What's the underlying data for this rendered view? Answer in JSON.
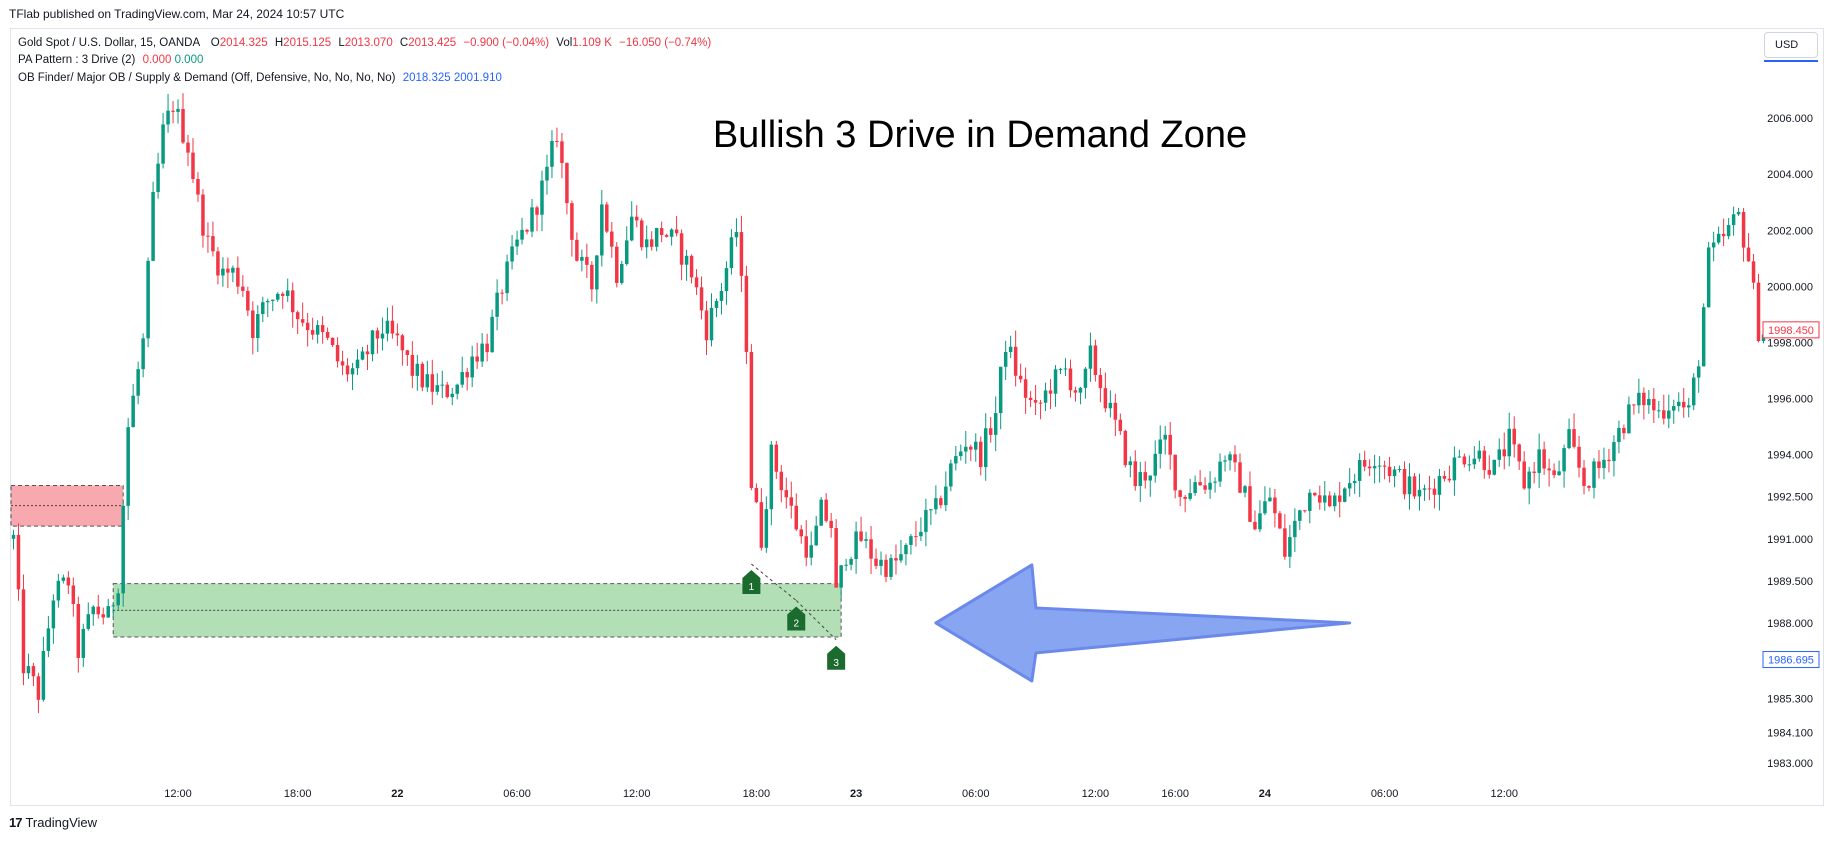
{
  "header": {
    "published": "TFlab published on TradingView.com, Mar 24, 2024 10:57 UTC"
  },
  "legend": {
    "symbol": "Gold Spot / U.S. Dollar, 15, OANDA",
    "o_label": "O",
    "o_value": "2014.325",
    "h_label": "H",
    "h_value": "2015.125",
    "l_label": "L",
    "l_value": "2013.070",
    "c_label": "C",
    "c_value": "2013.425",
    "change": "−0.900 (−0.04%)",
    "vol_label": "Vol",
    "vol_value": "1.109 K",
    "vol_change": "−16.050 (−0.74%)",
    "indicator1_label": "PA Pattern : 3 Drive (2)",
    "indicator1_v1": "0.000",
    "indicator1_v2": "0.000",
    "indicator2_label": "OB Finder/ Major OB / Supply & Demand (Off, Defensive, No, No, No, No)",
    "indicator2_v1": "2018.325",
    "indicator2_v2": "2001.910"
  },
  "currency_button": "USD",
  "footer": {
    "brand": "TradingView",
    "logo": "17"
  },
  "colors": {
    "up": "#089981",
    "down": "#f23645",
    "demand": "#b2dfb6",
    "supply": "#f8a9b0",
    "arrow": "#7b9cf0",
    "pattern": "#1b6b2e"
  },
  "chart_data": {
    "type": "candlestick",
    "title": "Bullish 3 Drive in  Demand Zone",
    "ylim": [
      1982.4,
      2008.0
    ],
    "y_ticks": [
      "2006.000",
      "2004.000",
      "2002.000",
      "2000.000",
      "1998.000",
      "1996.000",
      "1994.000",
      "1992.500",
      "1991.000",
      "1989.500",
      "1988.000",
      "1985.300",
      "1984.100",
      "1983.000"
    ],
    "x_labels": [
      {
        "text": "12:00",
        "bar": 33,
        "bold": false
      },
      {
        "text": "18:00",
        "bar": 57,
        "bold": false
      },
      {
        "text": "22",
        "bar": 77,
        "bold": true
      },
      {
        "text": "06:00",
        "bar": 101,
        "bold": false
      },
      {
        "text": "12:00",
        "bar": 125,
        "bold": false
      },
      {
        "text": "18:00",
        "bar": 149,
        "bold": false
      },
      {
        "text": "23",
        "bar": 169,
        "bold": true
      },
      {
        "text": "06:00",
        "bar": 193,
        "bold": false
      },
      {
        "text": "12:00",
        "bar": 217,
        "bold": false
      },
      {
        "text": "16:00",
        "bar": 233,
        "bold": false
      },
      {
        "text": "24",
        "bar": 251,
        "bold": true
      },
      {
        "text": "06:00",
        "bar": 275,
        "bold": false
      },
      {
        "text": "12:00",
        "bar": 299,
        "bold": false
      }
    ],
    "last_price": "1998.450",
    "crosshair_price": "1986.695",
    "demand_zone": {
      "bar_start": 20,
      "bar_end": 166,
      "top": 1989.4,
      "bottom": 1987.5,
      "mid": 1988.45
    },
    "supply_zone": {
      "bar_start": 0,
      "bar_end": 22,
      "top": 1992.9,
      "bottom": 1991.45,
      "mid": 1992.18
    },
    "drive_points": [
      {
        "label": "1",
        "bar": 148,
        "price": 1990.1
      },
      {
        "label": "2",
        "bar": 157,
        "price": 1988.8
      },
      {
        "label": "3",
        "bar": 165,
        "price": 1987.4
      }
    ],
    "arrow": {
      "from_bar": 268,
      "to_bar": 185,
      "price": 1988.0
    },
    "anchors": [
      [
        0,
        1991.0
      ],
      [
        2,
        1986.5
      ],
      [
        5,
        1985.5
      ],
      [
        8,
        1989.0
      ],
      [
        11,
        1989.5
      ],
      [
        13,
        1987.0
      ],
      [
        16,
        1988.5
      ],
      [
        19,
        1988.2
      ],
      [
        21,
        1989.5
      ],
      [
        23,
        1995.0
      ],
      [
        26,
        1998.0
      ],
      [
        28,
        2003.0
      ],
      [
        30,
        2005.5
      ],
      [
        32,
        2006.5
      ],
      [
        35,
        2005.0
      ],
      [
        37,
        2003.0
      ],
      [
        39,
        2001.5
      ],
      [
        42,
        2000.5
      ],
      [
        44,
        2000.5
      ],
      [
        46,
        2000.0
      ],
      [
        48,
        1998.5
      ],
      [
        51,
        1999.5
      ],
      [
        54,
        2000.0
      ],
      [
        57,
        1999.0
      ],
      [
        60,
        1998.5
      ],
      [
        63,
        1998.0
      ],
      [
        66,
        1997.0
      ],
      [
        69,
        1997.0
      ],
      [
        72,
        1998.0
      ],
      [
        74,
        1998.5
      ],
      [
        77,
        1998.0
      ],
      [
        80,
        1997.0
      ],
      [
        83,
        1996.5
      ],
      [
        86,
        1996.2
      ],
      [
        89,
        1996.5
      ],
      [
        92,
        1997.5
      ],
      [
        95,
        1998.0
      ],
      [
        98,
        2000.0
      ],
      [
        101,
        2001.5
      ],
      [
        104,
        2002.5
      ],
      [
        107,
        2004.0
      ],
      [
        109,
        2005.5
      ],
      [
        111,
        2003.0
      ],
      [
        113,
        2001.0
      ],
      [
        116,
        2000.0
      ],
      [
        118,
        2003.0
      ],
      [
        121,
        2000.5
      ],
      [
        124,
        2002.5
      ],
      [
        127,
        2001.5
      ],
      [
        130,
        2002.0
      ],
      [
        133,
        2001.5
      ],
      [
        136,
        2000.5
      ],
      [
        139,
        1998.5
      ],
      [
        142,
        2000.0
      ],
      [
        145,
        2002.0
      ],
      [
        147,
        1998.0
      ],
      [
        148,
        1993.0
      ],
      [
        150,
        1991.0
      ],
      [
        152,
        1994.0
      ],
      [
        154,
        1993.0
      ],
      [
        156,
        1992.0
      ],
      [
        158,
        1991.0
      ],
      [
        160,
        1990.5
      ],
      [
        162,
        1992.0
      ],
      [
        164,
        1991.5
      ],
      [
        165,
        1989.0
      ],
      [
        167,
        1990.5
      ],
      [
        170,
        1991.0
      ],
      [
        173,
        1990.2
      ],
      [
        176,
        1990.0
      ],
      [
        179,
        1990.5
      ],
      [
        182,
        1991.5
      ],
      [
        185,
        1992.0
      ],
      [
        188,
        1993.5
      ],
      [
        191,
        1994.5
      ],
      [
        194,
        1994.0
      ],
      [
        197,
        1995.5
      ],
      [
        199,
        1998.0
      ],
      [
        202,
        1996.5
      ],
      [
        205,
        1995.5
      ],
      [
        208,
        1996.5
      ],
      [
        211,
        1997.0
      ],
      [
        214,
        1996.0
      ],
      [
        216,
        1997.5
      ],
      [
        219,
        1996.0
      ],
      [
        222,
        1994.5
      ],
      [
        225,
        1993.0
      ],
      [
        228,
        1993.5
      ],
      [
        231,
        1994.5
      ],
      [
        234,
        1992.5
      ],
      [
        237,
        1993.0
      ],
      [
        240,
        1993.0
      ],
      [
        243,
        1994.0
      ],
      [
        246,
        1993.0
      ],
      [
        249,
        1991.5
      ],
      [
        252,
        1992.5
      ],
      [
        255,
        1990.5
      ],
      [
        258,
        1992.0
      ],
      [
        261,
        1993.0
      ],
      [
        264,
        1992.0
      ],
      [
        267,
        1993.0
      ],
      [
        270,
        1993.5
      ],
      [
        273,
        1994.0
      ],
      [
        276,
        1993.5
      ],
      [
        279,
        1993.0
      ],
      [
        282,
        1992.5
      ],
      [
        285,
        1993.0
      ],
      [
        288,
        1993.5
      ],
      [
        291,
        1994.0
      ],
      [
        294,
        1994.0
      ],
      [
        297,
        1993.5
      ],
      [
        300,
        1994.5
      ],
      [
        303,
        1993.0
      ],
      [
        306,
        1994.0
      ],
      [
        309,
        1993.0
      ],
      [
        312,
        1994.5
      ],
      [
        315,
        1993.0
      ],
      [
        318,
        1993.5
      ],
      [
        321,
        1994.5
      ],
      [
        324,
        1995.5
      ],
      [
        327,
        1996.0
      ],
      [
        330,
        1995.5
      ],
      [
        333,
        1996.0
      ],
      [
        336,
        1995.5
      ],
      [
        338,
        1997.5
      ],
      [
        340,
        2001.0
      ],
      [
        342,
        2001.5
      ],
      [
        344,
        2002.0
      ],
      [
        346,
        2002.5
      ],
      [
        348,
        2001.0
      ],
      [
        350,
        1998.5
      ],
      [
        351,
        1998.4
      ]
    ]
  }
}
